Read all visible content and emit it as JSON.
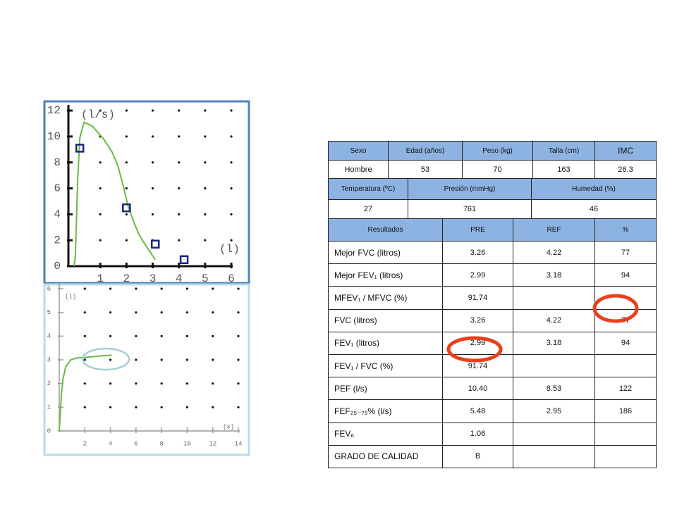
{
  "chart_data": [
    {
      "type": "line",
      "y_label": "(l/s)",
      "x_label": "(l)",
      "xlim": [
        0,
        6
      ],
      "ylim": [
        0,
        12
      ],
      "xticks": [
        1,
        2,
        3,
        4,
        5,
        6
      ],
      "yticks": [
        0,
        2,
        4,
        6,
        8,
        10,
        12
      ],
      "grid": "dotted",
      "series": [
        {
          "color": "#66bb44",
          "x": [
            0,
            0.05,
            0.14,
            0.22,
            0.38,
            0.7,
            1.13,
            1.45,
            1.68,
            1.9,
            2.08,
            2.3,
            2.49,
            2.7,
            2.9,
            3.1
          ],
          "values": [
            0,
            0.8,
            6.7,
            9.9,
            11.1,
            10.8,
            9.8,
            8.8,
            7.7,
            6.0,
            4.5,
            3.3,
            2.4,
            1.7,
            1.1,
            0.5
          ]
        },
        {
          "color": "#1a237e",
          "marker": "square",
          "x": [
            0.22,
            2.0,
            3.1,
            4.2
          ],
          "values": [
            9.1,
            4.5,
            1.7,
            0.5
          ]
        }
      ]
    },
    {
      "type": "line",
      "y_label": "(l)",
      "x_label": "(s)",
      "xlim": [
        0,
        14
      ],
      "ylim": [
        0,
        6
      ],
      "xticks": [
        2,
        4,
        6,
        8,
        10,
        12,
        14
      ],
      "yticks": [
        0,
        1,
        2,
        3,
        4,
        5,
        6
      ],
      "grid": "dotted",
      "series": [
        {
          "color": "#66bb44",
          "x": [
            0,
            0.08,
            0.16,
            0.3,
            0.5,
            0.9,
            1.4,
            2.0,
            3.0,
            4.1
          ],
          "values": [
            0,
            0.7,
            1.5,
            2.2,
            2.7,
            3.0,
            3.08,
            3.1,
            3.15,
            3.2
          ]
        }
      ]
    }
  ],
  "table": {
    "sections": [
      {
        "header": [
          "Sexo",
          "Edad (años)",
          "Peso (kg)",
          "Talla (cm)",
          "IMC"
        ],
        "rows": [
          [
            "Hombre",
            "53",
            "70",
            "163",
            "26.3"
          ]
        ]
      },
      {
        "header": [
          "Temperatura (ºC)",
          "Presión (mmHg)",
          "Humedad (%)"
        ],
        "rows": [
          [
            "27",
            "761",
            "46"
          ]
        ]
      },
      {
        "header": [
          "Resultados",
          "PRE",
          "REF",
          "%"
        ],
        "rows": [
          [
            "Mejor FVC  (litros)",
            "3.26",
            "4.22",
            "77"
          ],
          [
            "Mejor FEV₁  (litros)",
            "2.99",
            "3.18",
            "94"
          ],
          [
            "MFEV₁ / MFVC  (%)",
            "91.74",
            null,
            null
          ],
          [
            "FVC  (litros)",
            "3.26",
            "4.22",
            "77"
          ],
          [
            "FEV₁  (litros)",
            "2.99",
            "3.18",
            "94"
          ],
          [
            "FEV₁ / FVC  (%)",
            "91.74",
            null,
            null
          ],
          [
            "PEF (l/s)",
            "10.40",
            "8.53",
            "122"
          ],
          [
            "FEF₂₅₋₇₅% (l/s)",
            "5.48",
            "2.95",
            "186"
          ],
          [
            "FEV₆",
            "1.06",
            null,
            null
          ],
          [
            "GRADO DE CALIDAD",
            "B",
            null,
            null
          ]
        ]
      }
    ]
  }
}
